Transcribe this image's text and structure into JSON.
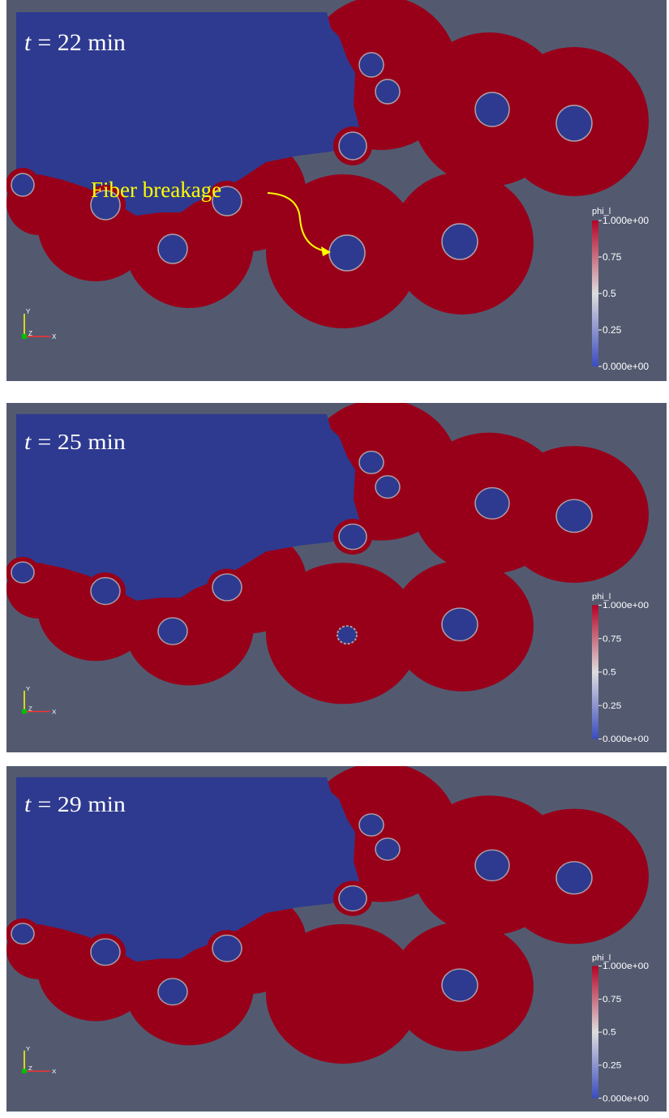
{
  "panels": [
    {
      "time": {
        "var": "t",
        "rest": "= 22 min"
      },
      "annotation": "Fiber breakage",
      "colorbar": {
        "title": "phi_l",
        "ticks": [
          "1.000e+00",
          "0.75",
          "0.5",
          "0.25",
          "0.000e+00"
        ]
      },
      "axes": [
        "Y",
        "Z",
        "X"
      ]
    },
    {
      "time": {
        "var": "t",
        "rest": "= 25 min"
      },
      "colorbar": {
        "title": "phi_l",
        "ticks": [
          "1.000e+00",
          "0.75",
          "0.5",
          "0.25",
          "0.000e+00"
        ]
      },
      "axes": [
        "Y",
        "Z",
        "X"
      ]
    },
    {
      "time": {
        "var": "t",
        "rest": "= 29 min"
      },
      "colorbar": {
        "title": "phi_l",
        "ticks": [
          "1.000e+00",
          "0.75",
          "0.5",
          "0.25",
          "0.000e+00"
        ]
      },
      "axes": [
        "Y",
        "Z",
        "X"
      ]
    }
  ]
}
